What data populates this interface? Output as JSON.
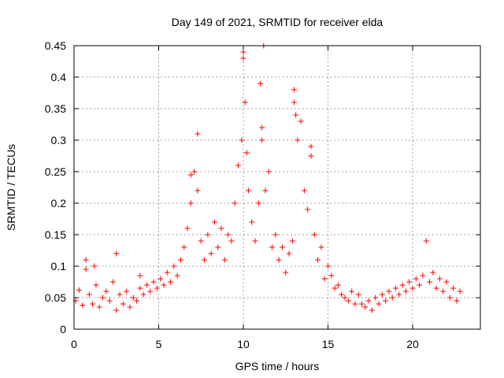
{
  "chart_data": {
    "type": "scatter",
    "title": "Day 149 of 2021, SRMTID for receiver elda",
    "xlabel": "GPS time / hours",
    "ylabel": "SRMTID / TECUs",
    "xlim": [
      0,
      24
    ],
    "ylim": [
      0,
      0.45
    ],
    "xticks": [
      0,
      5,
      10,
      15,
      20
    ],
    "yticks": [
      0,
      0.05,
      0.1,
      0.15,
      0.2,
      0.25,
      0.3,
      0.35,
      0.4,
      0.45
    ],
    "xtick_labels": [
      "0",
      "5",
      "10",
      "15",
      "20"
    ],
    "ytick_labels": [
      "0",
      "0.05",
      "0.1",
      "0.15",
      "0.2",
      "0.25",
      "0.3",
      "0.35",
      "0.4",
      "0.45"
    ],
    "grid": true,
    "marker": "+",
    "series": [
      {
        "name": "SRMTID",
        "color": "#ff0000",
        "points": [
          [
            0.1,
            0.045
          ],
          [
            0.3,
            0.062
          ],
          [
            0.5,
            0.038
          ],
          [
            0.7,
            0.095
          ],
          [
            0.9,
            0.055
          ],
          [
            1.1,
            0.04
          ],
          [
            1.3,
            0.07
          ],
          [
            1.5,
            0.035
          ],
          [
            1.7,
            0.05
          ],
          [
            1.9,
            0.06
          ],
          [
            2.1,
            0.045
          ],
          [
            2.3,
            0.075
          ],
          [
            2.5,
            0.03
          ],
          [
            2.7,
            0.055
          ],
          [
            2.9,
            0.04
          ],
          [
            3.1,
            0.06
          ],
          [
            3.3,
            0.035
          ],
          [
            3.5,
            0.05
          ],
          [
            3.7,
            0.045
          ],
          [
            3.9,
            0.065
          ],
          [
            4.1,
            0.055
          ],
          [
            4.3,
            0.07
          ],
          [
            4.5,
            0.06
          ],
          [
            4.7,
            0.075
          ],
          [
            4.9,
            0.065
          ],
          [
            5.1,
            0.08
          ],
          [
            5.3,
            0.07
          ],
          [
            5.5,
            0.09
          ],
          [
            5.7,
            0.075
          ],
          [
            5.9,
            0.1
          ],
          [
            6.1,
            0.085
          ],
          [
            6.3,
            0.11
          ],
          [
            6.5,
            0.13
          ],
          [
            6.7,
            0.16
          ],
          [
            6.9,
            0.2
          ],
          [
            7.1,
            0.25
          ],
          [
            7.3,
            0.22
          ],
          [
            7.5,
            0.14
          ],
          [
            7.7,
            0.11
          ],
          [
            7.9,
            0.15
          ],
          [
            8.1,
            0.12
          ],
          [
            8.3,
            0.17
          ],
          [
            8.5,
            0.13
          ],
          [
            8.7,
            0.16
          ],
          [
            8.9,
            0.11
          ],
          [
            9.1,
            0.15
          ],
          [
            9.3,
            0.14
          ],
          [
            9.5,
            0.2
          ],
          [
            9.7,
            0.26
          ],
          [
            9.9,
            0.3
          ],
          [
            10.0,
            0.43
          ],
          [
            10.1,
            0.36
          ],
          [
            10.2,
            0.28
          ],
          [
            10.3,
            0.22
          ],
          [
            10.5,
            0.17
          ],
          [
            10.7,
            0.14
          ],
          [
            10.9,
            0.2
          ],
          [
            11.0,
            0.39
          ],
          [
            11.1,
            0.32
          ],
          [
            11.3,
            0.22
          ],
          [
            11.5,
            0.25
          ],
          [
            11.7,
            0.13
          ],
          [
            11.9,
            0.15
          ],
          [
            12.1,
            0.11
          ],
          [
            12.3,
            0.13
          ],
          [
            12.5,
            0.09
          ],
          [
            12.7,
            0.12
          ],
          [
            12.9,
            0.14
          ],
          [
            13.0,
            0.36
          ],
          [
            13.1,
            0.34
          ],
          [
            13.2,
            0.3
          ],
          [
            13.4,
            0.33
          ],
          [
            13.6,
            0.22
          ],
          [
            13.8,
            0.19
          ],
          [
            14.0,
            0.29
          ],
          [
            14.2,
            0.15
          ],
          [
            14.4,
            0.11
          ],
          [
            14.6,
            0.13
          ],
          [
            14.8,
            0.08
          ],
          [
            15.0,
            0.1
          ],
          [
            15.2,
            0.085
          ],
          [
            15.4,
            0.065
          ],
          [
            15.6,
            0.07
          ],
          [
            15.8,
            0.055
          ],
          [
            16.0,
            0.05
          ],
          [
            16.2,
            0.045
          ],
          [
            16.4,
            0.06
          ],
          [
            16.6,
            0.04
          ],
          [
            16.8,
            0.055
          ],
          [
            17.0,
            0.04
          ],
          [
            17.2,
            0.035
          ],
          [
            17.4,
            0.045
          ],
          [
            17.6,
            0.03
          ],
          [
            17.8,
            0.05
          ],
          [
            18.0,
            0.04
          ],
          [
            18.2,
            0.055
          ],
          [
            18.4,
            0.045
          ],
          [
            18.6,
            0.06
          ],
          [
            18.8,
            0.05
          ],
          [
            19.0,
            0.065
          ],
          [
            19.2,
            0.055
          ],
          [
            19.4,
            0.07
          ],
          [
            19.6,
            0.06
          ],
          [
            19.8,
            0.075
          ],
          [
            20.0,
            0.065
          ],
          [
            20.2,
            0.08
          ],
          [
            20.4,
            0.07
          ],
          [
            20.6,
            0.085
          ],
          [
            20.8,
            0.14
          ],
          [
            21.0,
            0.075
          ],
          [
            21.2,
            0.09
          ],
          [
            21.4,
            0.065
          ],
          [
            21.6,
            0.08
          ],
          [
            21.8,
            0.06
          ],
          [
            22.0,
            0.075
          ],
          [
            22.2,
            0.05
          ],
          [
            22.4,
            0.065
          ],
          [
            22.6,
            0.045
          ],
          [
            22.8,
            0.06
          ],
          [
            7.3,
            0.31
          ],
          [
            11.2,
            0.45
          ],
          [
            10.0,
            0.44
          ],
          [
            13.0,
            0.38
          ],
          [
            6.9,
            0.245
          ],
          [
            14.0,
            0.275
          ],
          [
            11.1,
            0.3
          ],
          [
            0.7,
            0.11
          ],
          [
            1.2,
            0.1
          ],
          [
            2.5,
            0.12
          ],
          [
            3.9,
            0.085
          ]
        ]
      }
    ],
    "noise_note": "Dense scatter; listed points are representative samples of the plotted series."
  }
}
